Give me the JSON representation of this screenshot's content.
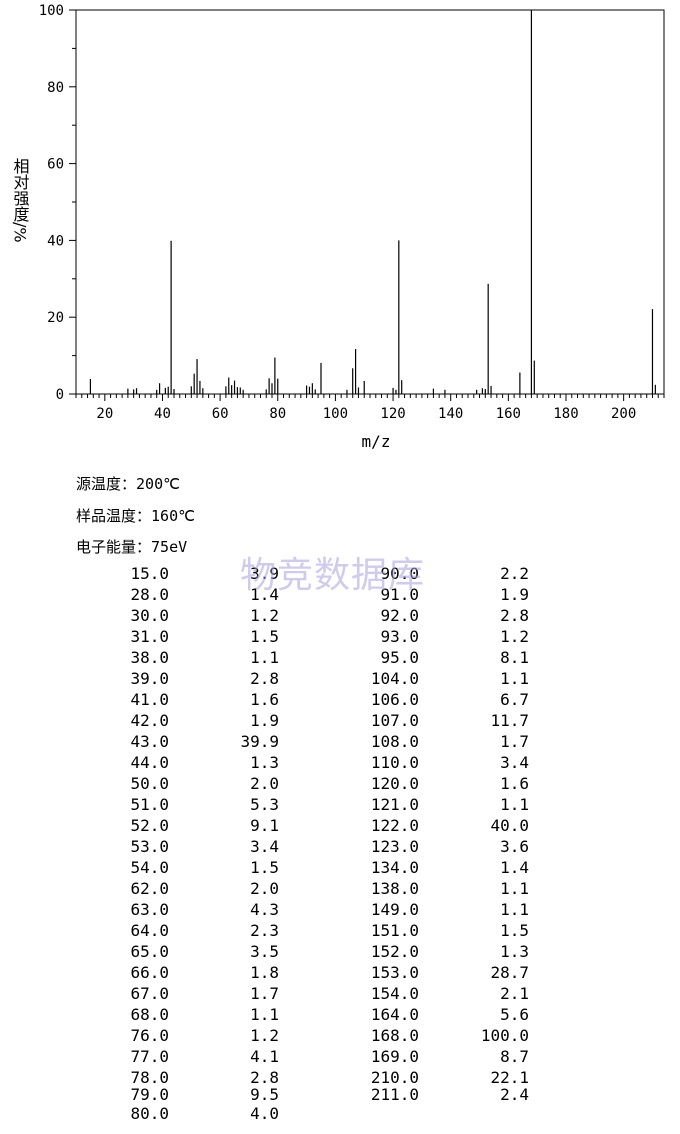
{
  "chart_data": {
    "type": "bar",
    "xlabel": "m/z",
    "ylabel": "相对强度/%",
    "xlim": [
      10,
      214
    ],
    "ylim": [
      0,
      100
    ],
    "x_ticks": [
      "20",
      "40",
      "60",
      "80",
      "100",
      "120",
      "140",
      "160",
      "180",
      "200"
    ],
    "y_ticks": [
      "0",
      "20",
      "40",
      "60",
      "80",
      "100"
    ],
    "peaks": [
      [
        15.0,
        3.9
      ],
      [
        28.0,
        1.4
      ],
      [
        30.0,
        1.2
      ],
      [
        31.0,
        1.5
      ],
      [
        38.0,
        1.1
      ],
      [
        39.0,
        2.8
      ],
      [
        41.0,
        1.6
      ],
      [
        42.0,
        1.9
      ],
      [
        43.0,
        39.9
      ],
      [
        44.0,
        1.3
      ],
      [
        50.0,
        2.0
      ],
      [
        51.0,
        5.3
      ],
      [
        52.0,
        9.1
      ],
      [
        53.0,
        3.4
      ],
      [
        54.0,
        1.5
      ],
      [
        62.0,
        2.0
      ],
      [
        63.0,
        4.3
      ],
      [
        64.0,
        2.3
      ],
      [
        65.0,
        3.5
      ],
      [
        66.0,
        1.8
      ],
      [
        67.0,
        1.7
      ],
      [
        68.0,
        1.1
      ],
      [
        76.0,
        1.2
      ],
      [
        77.0,
        4.1
      ],
      [
        78.0,
        2.8
      ],
      [
        79.0,
        9.5
      ],
      [
        80.0,
        4.0
      ],
      [
        90.0,
        2.2
      ],
      [
        91.0,
        1.9
      ],
      [
        92.0,
        2.8
      ],
      [
        93.0,
        1.2
      ],
      [
        95.0,
        8.1
      ],
      [
        104.0,
        1.1
      ],
      [
        106.0,
        6.7
      ],
      [
        107.0,
        11.7
      ],
      [
        108.0,
        1.7
      ],
      [
        110.0,
        3.4
      ],
      [
        120.0,
        1.6
      ],
      [
        121.0,
        1.1
      ],
      [
        122.0,
        40.0
      ],
      [
        123.0,
        3.6
      ],
      [
        134.0,
        1.4
      ],
      [
        138.0,
        1.1
      ],
      [
        149.0,
        1.1
      ],
      [
        151.0,
        1.5
      ],
      [
        152.0,
        1.3
      ],
      [
        153.0,
        28.7
      ],
      [
        154.0,
        2.1
      ],
      [
        164.0,
        5.6
      ],
      [
        168.0,
        100.0
      ],
      [
        169.0,
        8.7
      ],
      [
        210.0,
        22.1
      ],
      [
        211.0,
        2.4
      ]
    ]
  },
  "conditions": {
    "source_temp_label": "源温度：",
    "source_temp_value": "200℃",
    "sample_temp_label": "样品温度：",
    "sample_temp_value": "160℃",
    "energy_label": "电子能量：",
    "energy_value": "75eV"
  },
  "watermark": "物竞数据库",
  "table_rows": [
    [
      "15.0",
      "3.9",
      "90.0",
      "2.2"
    ],
    [
      "28.0",
      "1.4",
      "91.0",
      "1.9"
    ],
    [
      "30.0",
      "1.2",
      "92.0",
      "2.8"
    ],
    [
      "31.0",
      "1.5",
      "93.0",
      "1.2"
    ],
    [
      "38.0",
      "1.1",
      "95.0",
      "8.1"
    ],
    [
      "39.0",
      "2.8",
      "104.0",
      "1.1"
    ],
    [
      "41.0",
      "1.6",
      "106.0",
      "6.7"
    ],
    [
      "42.0",
      "1.9",
      "107.0",
      "11.7"
    ],
    [
      "43.0",
      "39.9",
      "108.0",
      "1.7"
    ],
    [
      "44.0",
      "1.3",
      "110.0",
      "3.4"
    ],
    [
      "50.0",
      "2.0",
      "120.0",
      "1.6"
    ],
    [
      "51.0",
      "5.3",
      "121.0",
      "1.1"
    ],
    [
      "52.0",
      "9.1",
      "122.0",
      "40.0"
    ],
    [
      "53.0",
      "3.4",
      "123.0",
      "3.6"
    ],
    [
      "54.0",
      "1.5",
      "134.0",
      "1.4"
    ],
    [
      "62.0",
      "2.0",
      "138.0",
      "1.1"
    ],
    [
      "63.0",
      "4.3",
      "149.0",
      "1.1"
    ],
    [
      "64.0",
      "2.3",
      "151.0",
      "1.5"
    ],
    [
      "65.0",
      "3.5",
      "152.0",
      "1.3"
    ],
    [
      "66.0",
      "1.8",
      "153.0",
      "28.7"
    ],
    [
      "67.0",
      "1.7",
      "154.0",
      "2.1"
    ],
    [
      "68.0",
      "1.1",
      "164.0",
      "5.6"
    ],
    [
      "76.0",
      "1.2",
      "168.0",
      "100.0"
    ],
    [
      "77.0",
      "4.1",
      "169.0",
      "8.7"
    ],
    [
      "78.0",
      "2.8",
      "210.0",
      "22.1"
    ],
    [
      "79.0",
      "9.5",
      "211.0",
      "2.4"
    ],
    [
      "80.0",
      "4.0",
      "",
      ""
    ]
  ]
}
